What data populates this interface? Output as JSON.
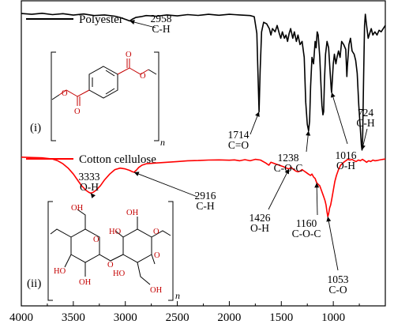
{
  "chart_data": {
    "type": "line",
    "title": "",
    "xlabel": "",
    "ylabel": "",
    "xlim": [
      4000,
      500
    ],
    "x_ticks": [
      "4000",
      "3500",
      "3000",
      "2500",
      "2000",
      "1500",
      "1000"
    ],
    "x_tick_values": [
      4000,
      3500,
      3000,
      2500,
      2000,
      1500,
      1000
    ],
    "grid": false,
    "legend": "top-left",
    "series": [
      {
        "name": "Polyester",
        "color": "#000000",
        "points": [
          [
            4000,
            0.975
          ],
          [
            3900,
            0.97
          ],
          [
            3800,
            0.976
          ],
          [
            3700,
            0.968
          ],
          [
            3600,
            0.974
          ],
          [
            3500,
            0.965
          ],
          [
            3400,
            0.972
          ],
          [
            3300,
            0.962
          ],
          [
            3200,
            0.966
          ],
          [
            3100,
            0.958
          ],
          [
            3050,
            0.95
          ],
          [
            2990,
            0.936
          ],
          [
            2958,
            0.928
          ],
          [
            2930,
            0.94
          ],
          [
            2900,
            0.95
          ],
          [
            2850,
            0.955
          ],
          [
            2800,
            0.962
          ],
          [
            2700,
            0.958
          ],
          [
            2600,
            0.966
          ],
          [
            2500,
            0.96
          ],
          [
            2400,
            0.968
          ],
          [
            2300,
            0.963
          ],
          [
            2200,
            0.97
          ],
          [
            2100,
            0.964
          ],
          [
            2000,
            0.97
          ],
          [
            1950,
            0.968
          ],
          [
            1900,
            0.966
          ],
          [
            1850,
            0.964
          ],
          [
            1800,
            0.962
          ],
          [
            1760,
            0.955
          ],
          [
            1735,
            0.85
          ],
          [
            1725,
            0.6
          ],
          [
            1714,
            0.36
          ],
          [
            1703,
            0.62
          ],
          [
            1690,
            0.86
          ],
          [
            1670,
            0.92
          ],
          [
            1640,
            0.91
          ],
          [
            1615,
            0.88
          ],
          [
            1600,
            0.84
          ],
          [
            1585,
            0.88
          ],
          [
            1560,
            0.86
          ],
          [
            1540,
            0.9
          ],
          [
            1520,
            0.85
          ],
          [
            1505,
            0.82
          ],
          [
            1490,
            0.86
          ],
          [
            1470,
            0.82
          ],
          [
            1455,
            0.84
          ],
          [
            1440,
            0.8
          ],
          [
            1425,
            0.85
          ],
          [
            1410,
            0.88
          ],
          [
            1390,
            0.82
          ],
          [
            1375,
            0.86
          ],
          [
            1355,
            0.8
          ],
          [
            1340,
            0.84
          ],
          [
            1320,
            0.78
          ],
          [
            1300,
            0.8
          ],
          [
            1280,
            0.7
          ],
          [
            1265,
            0.42
          ],
          [
            1250,
            0.28
          ],
          [
            1238,
            0.24
          ],
          [
            1228,
            0.3
          ],
          [
            1218,
            0.52
          ],
          [
            1205,
            0.7
          ],
          [
            1190,
            0.66
          ],
          [
            1175,
            0.8
          ],
          [
            1165,
            0.76
          ],
          [
            1155,
            0.86
          ],
          [
            1145,
            0.84
          ],
          [
            1130,
            0.7
          ],
          [
            1120,
            0.55
          ],
          [
            1110,
            0.4
          ],
          [
            1100,
            0.34
          ],
          [
            1093,
            0.36
          ],
          [
            1085,
            0.55
          ],
          [
            1075,
            0.72
          ],
          [
            1060,
            0.8
          ],
          [
            1045,
            0.76
          ],
          [
            1030,
            0.6
          ],
          [
            1020,
            0.5
          ],
          [
            1016,
            0.48
          ],
          [
            1010,
            0.55
          ],
          [
            1000,
            0.66
          ],
          [
            990,
            0.72
          ],
          [
            975,
            0.66
          ],
          [
            965,
            0.7
          ],
          [
            950,
            0.74
          ],
          [
            935,
            0.7
          ],
          [
            920,
            0.8
          ],
          [
            900,
            0.78
          ],
          [
            880,
            0.75
          ],
          [
            870,
            0.58
          ],
          [
            865,
            0.64
          ],
          [
            850,
            0.78
          ],
          [
            835,
            0.82
          ],
          [
            820,
            0.74
          ],
          [
            800,
            0.72
          ],
          [
            785,
            0.68
          ],
          [
            770,
            0.6
          ],
          [
            755,
            0.4
          ],
          [
            740,
            0.25
          ],
          [
            730,
            0.15
          ],
          [
            724,
            0.12
          ],
          [
            718,
            0.2
          ],
          [
            708,
            0.6
          ],
          [
            700,
            0.9
          ],
          [
            692,
            0.97
          ],
          [
            680,
            0.9
          ],
          [
            665,
            0.82
          ],
          [
            650,
            0.85
          ],
          [
            635,
            0.88
          ],
          [
            620,
            0.84
          ],
          [
            600,
            0.86
          ],
          [
            580,
            0.84
          ],
          [
            560,
            0.87
          ],
          [
            540,
            0.86
          ],
          [
            520,
            0.88
          ],
          [
            500,
            0.9
          ]
        ]
      },
      {
        "name": "Cotton cellulose",
        "color": "#ff0000",
        "points": [
          [
            4000,
            0.985
          ],
          [
            3900,
            0.982
          ],
          [
            3800,
            0.98
          ],
          [
            3700,
            0.972
          ],
          [
            3650,
            0.96
          ],
          [
            3600,
            0.94
          ],
          [
            3550,
            0.91
          ],
          [
            3500,
            0.87
          ],
          [
            3450,
            0.82
          ],
          [
            3420,
            0.79
          ],
          [
            3380,
            0.76
          ],
          [
            3350,
            0.745
          ],
          [
            3333,
            0.74
          ],
          [
            3310,
            0.745
          ],
          [
            3280,
            0.76
          ],
          [
            3240,
            0.79
          ],
          [
            3200,
            0.83
          ],
          [
            3150,
            0.87
          ],
          [
            3100,
            0.9
          ],
          [
            3050,
            0.91
          ],
          [
            3000,
            0.905
          ],
          [
            2960,
            0.895
          ],
          [
            2930,
            0.885
          ],
          [
            2916,
            0.882
          ],
          [
            2895,
            0.895
          ],
          [
            2870,
            0.915
          ],
          [
            2840,
            0.93
          ],
          [
            2800,
            0.94
          ],
          [
            2700,
            0.945
          ],
          [
            2600,
            0.95
          ],
          [
            2500,
            0.955
          ],
          [
            2400,
            0.96
          ],
          [
            2300,
            0.962
          ],
          [
            2200,
            0.965
          ],
          [
            2100,
            0.966
          ],
          [
            2000,
            0.964
          ],
          [
            1950,
            0.966
          ],
          [
            1900,
            0.96
          ],
          [
            1850,
            0.968
          ],
          [
            1800,
            0.96
          ],
          [
            1750,
            0.97
          ],
          [
            1700,
            0.965
          ],
          [
            1650,
            0.945
          ],
          [
            1620,
            0.93
          ],
          [
            1600,
            0.95
          ],
          [
            1560,
            0.94
          ],
          [
            1520,
            0.93
          ],
          [
            1480,
            0.92
          ],
          [
            1450,
            0.91
          ],
          [
            1426,
            0.905
          ],
          [
            1405,
            0.915
          ],
          [
            1380,
            0.9
          ],
          [
            1360,
            0.89
          ],
          [
            1340,
            0.885
          ],
          [
            1320,
            0.89
          ],
          [
            1300,
            0.9
          ],
          [
            1280,
            0.89
          ],
          [
            1260,
            0.88
          ],
          [
            1240,
            0.87
          ],
          [
            1220,
            0.86
          ],
          [
            1205,
            0.87
          ],
          [
            1190,
            0.85
          ],
          [
            1175,
            0.84
          ],
          [
            1160,
            0.81
          ],
          [
            1145,
            0.8
          ],
          [
            1130,
            0.79
          ],
          [
            1115,
            0.76
          ],
          [
            1100,
            0.73
          ],
          [
            1090,
            0.71
          ],
          [
            1080,
            0.69
          ],
          [
            1070,
            0.66
          ],
          [
            1060,
            0.61
          ],
          [
            1053,
            0.58
          ],
          [
            1045,
            0.6
          ],
          [
            1035,
            0.64
          ],
          [
            1025,
            0.66
          ],
          [
            1015,
            0.7
          ],
          [
            1005,
            0.74
          ],
          [
            995,
            0.78
          ],
          [
            985,
            0.82
          ],
          [
            970,
            0.86
          ],
          [
            950,
            0.9
          ],
          [
            930,
            0.93
          ],
          [
            900,
            0.95
          ],
          [
            880,
            0.96
          ],
          [
            860,
            0.97
          ],
          [
            840,
            0.965
          ],
          [
            820,
            0.97
          ],
          [
            800,
            0.96
          ],
          [
            780,
            0.955
          ],
          [
            760,
            0.965
          ],
          [
            740,
            0.96
          ],
          [
            720,
            0.97
          ],
          [
            700,
            0.96
          ],
          [
            680,
            0.95
          ],
          [
            660,
            0.96
          ],
          [
            640,
            0.955
          ],
          [
            620,
            0.965
          ],
          [
            600,
            0.96
          ],
          [
            580,
            0.962
          ],
          [
            560,
            0.965
          ],
          [
            540,
            0.968
          ],
          [
            520,
            0.97
          ],
          [
            500,
            0.972
          ]
        ]
      }
    ],
    "annotations": {
      "poly": [
        {
          "line1": "2958",
          "line2": "C-H",
          "x": 2958
        },
        {
          "line1": "1714",
          "line2": "C=O",
          "x": 1714
        },
        {
          "line1": "1238",
          "line2": "C-O-C",
          "x": 1238
        },
        {
          "line1": "1016",
          "line2": "O-H",
          "x": 1016
        },
        {
          "line1": "724",
          "line2": "C-H",
          "x": 724
        }
      ],
      "cell": [
        {
          "line1": "3333",
          "line2": "O-H",
          "x": 3333
        },
        {
          "line1": "2916",
          "line2": "C-H",
          "x": 2916
        },
        {
          "line1": "1426",
          "line2": "O-H",
          "x": 1426
        },
        {
          "line1": "1160",
          "line2": "C-O-C",
          "x": 1160
        },
        {
          "line1": "1053",
          "line2": "C-O",
          "x": 1053
        }
      ]
    },
    "panel_labels": [
      "(i)",
      "(ii)"
    ],
    "repeat_unit_label": "n",
    "structure_atom_labels": {
      "poly": [
        "O",
        "O",
        "O",
        "O"
      ],
      "cell": [
        "OH",
        "HO",
        "OH",
        "O",
        "O",
        "O",
        "HO",
        "OH",
        "HO",
        "OH",
        "O"
      ]
    }
  }
}
